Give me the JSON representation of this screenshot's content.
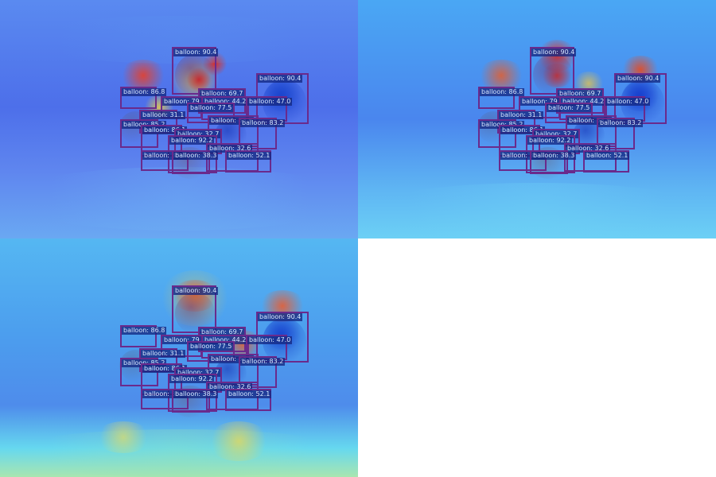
{
  "panels": [
    {
      "variant": "v1"
    },
    {
      "variant": "v2"
    },
    {
      "variant": "v3"
    }
  ],
  "detections": [
    {
      "label": "balloon",
      "score": "90.4"
    },
    {
      "label": "balloon",
      "score": "90.4"
    },
    {
      "label": "balloon",
      "score": "86.8"
    },
    {
      "label": "balloon",
      "score": "69.7"
    },
    {
      "label": "balloon",
      "score": "79"
    },
    {
      "label": "balloon",
      "score": "44.2"
    },
    {
      "label": "balloon",
      "score": "77.5"
    },
    {
      "label": "balloon",
      "score": "47.0"
    },
    {
      "label": "balloon",
      "score": "31.1"
    },
    {
      "label": "balloon",
      "score": "85.2"
    },
    {
      "label": "balloon",
      "score": "86.1"
    },
    {
      "label": "balloon",
      "score": "53.6"
    },
    {
      "label": "balloon",
      "score": "83.2"
    },
    {
      "label": "balloon",
      "score": "32.7"
    },
    {
      "label": "balloon",
      "score": "92.2"
    },
    {
      "label": "balloon",
      "score": "32.6"
    },
    {
      "label": "balloon",
      "score": "38.3"
    },
    {
      "label": "balloon",
      "score": "52.1"
    },
    {
      "label": "balloon",
      "score": "38.3"
    }
  ],
  "colors": {
    "box": "#6a2a8c",
    "tag_bg": "#142882",
    "tag_text": "#d6e7ff",
    "heat_hot": "#e8201a",
    "heat_warm": "#f5d43a",
    "heat_cool": "#4d6fea"
  }
}
